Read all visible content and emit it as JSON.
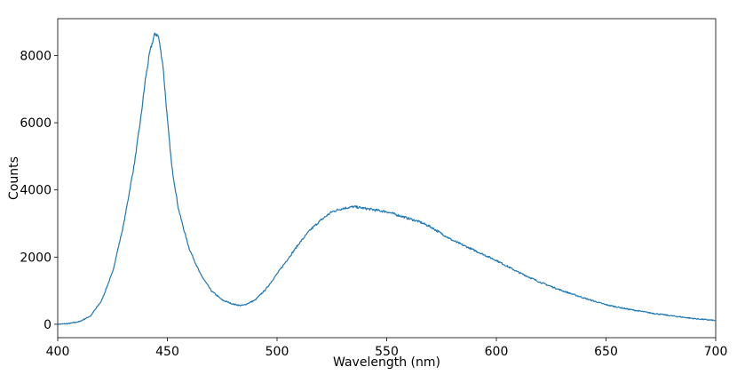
{
  "chart_data": {
    "type": "line",
    "title": "",
    "xlabel": "Wavelength (nm)",
    "ylabel": "Counts",
    "xlim": [
      400,
      700
    ],
    "ylim": [
      -400,
      9100
    ],
    "grid": false,
    "legend": "none",
    "line_color": "#1f77b4",
    "x_ticks": [
      400,
      450,
      500,
      550,
      600,
      650,
      700
    ],
    "y_ticks": [
      0,
      2000,
      4000,
      6000,
      8000
    ],
    "series": [
      {
        "x": [
          400,
          405,
          410,
          415,
          420,
          425,
          430,
          435,
          438,
          440,
          442,
          444,
          445,
          446,
          448,
          450,
          452,
          455,
          458,
          460,
          465,
          470,
          475,
          480,
          483,
          485,
          490,
          495,
          500,
          505,
          510,
          515,
          520,
          525,
          530,
          535,
          540,
          545,
          550,
          555,
          560,
          565,
          570,
          575,
          580,
          590,
          600,
          610,
          620,
          630,
          640,
          650,
          660,
          670,
          680,
          690,
          700
        ],
        "values": [
          0,
          20,
          80,
          250,
          700,
          1550,
          2950,
          4800,
          6200,
          7300,
          8100,
          8600,
          8650,
          8550,
          7700,
          6100,
          4700,
          3450,
          2700,
          2250,
          1500,
          1000,
          720,
          600,
          560,
          570,
          720,
          1050,
          1500,
          1950,
          2400,
          2800,
          3100,
          3350,
          3450,
          3500,
          3450,
          3400,
          3350,
          3250,
          3150,
          3050,
          2900,
          2700,
          2500,
          2200,
          1900,
          1550,
          1250,
          1000,
          780,
          580,
          450,
          340,
          250,
          170,
          110
        ]
      }
    ]
  }
}
